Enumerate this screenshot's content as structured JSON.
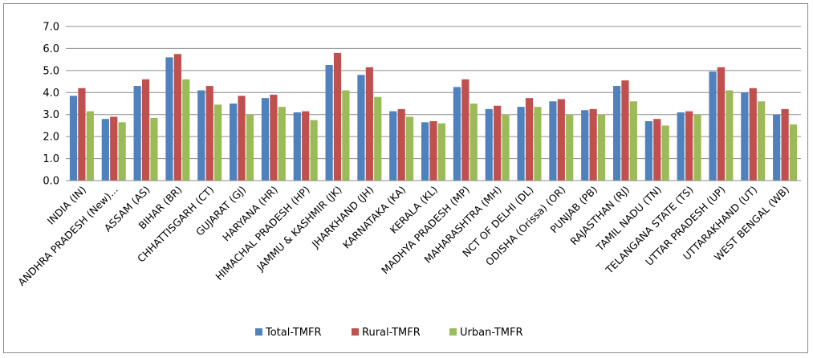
{
  "chart_data": {
    "type": "bar",
    "title": "",
    "xlabel": "",
    "ylabel": "",
    "ylim": [
      0,
      7
    ],
    "yticks": [
      "0.0",
      "1.0",
      "2.0",
      "3.0",
      "4.0",
      "5.0",
      "6.0",
      "7.0"
    ],
    "grid": true,
    "legend": "bottom",
    "categories": [
      "INDIA (IN)",
      "ANDHRA PRADESH (New)...",
      "ASSAM (AS)",
      "BIHAR (BR)",
      "CHHATTISGARH (CT)",
      "GUJARAT (GJ)",
      "HARYANA (HR)",
      "HIMACHAL PRADESH (HP)",
      "JAMMU & KASHMIR (JK)",
      "JHARKHAND (JH)",
      "KARNATAKA (KA)",
      "KERALA (KL)",
      "MADHYA PRADESH (MP)",
      "MAHARASHTRA (MH)",
      "NCT OF DELHI (DL)",
      "ODISHA (Orissa) (OR)",
      "PUNJAB (PB)",
      "RAJASTHAN (RJ)",
      "TAMIL NADU (TN)",
      "TELANGANA STATE (TS)",
      "UTTAR PRADESH (UP)",
      "UTTARAKHAND (UT)",
      "WEST BENGAL (WB)"
    ],
    "series": [
      {
        "name": "Total-TMFR",
        "color": "#4f81bd",
        "values": [
          3.85,
          2.8,
          4.3,
          5.6,
          4.1,
          3.5,
          3.75,
          3.1,
          5.25,
          4.8,
          3.15,
          2.65,
          4.25,
          3.25,
          3.35,
          3.6,
          3.2,
          4.3,
          2.7,
          3.1,
          4.95,
          4.0,
          3.0
        ]
      },
      {
        "name": "Rural-TMFR",
        "color": "#c0504d",
        "values": [
          4.2,
          2.9,
          4.6,
          5.75,
          4.3,
          3.85,
          3.9,
          3.15,
          5.8,
          5.15,
          3.25,
          2.7,
          4.6,
          3.4,
          3.75,
          3.7,
          3.25,
          4.55,
          2.8,
          3.15,
          5.15,
          4.2,
          3.25
        ]
      },
      {
        "name": "Urban-TMFR",
        "color": "#9bbb59",
        "values": [
          3.15,
          2.65,
          2.85,
          4.6,
          3.45,
          3.0,
          3.35,
          2.75,
          4.1,
          3.8,
          2.9,
          2.6,
          3.5,
          3.0,
          3.35,
          3.0,
          3.0,
          3.6,
          2.5,
          3.0,
          4.1,
          3.6,
          2.55
        ]
      }
    ]
  }
}
